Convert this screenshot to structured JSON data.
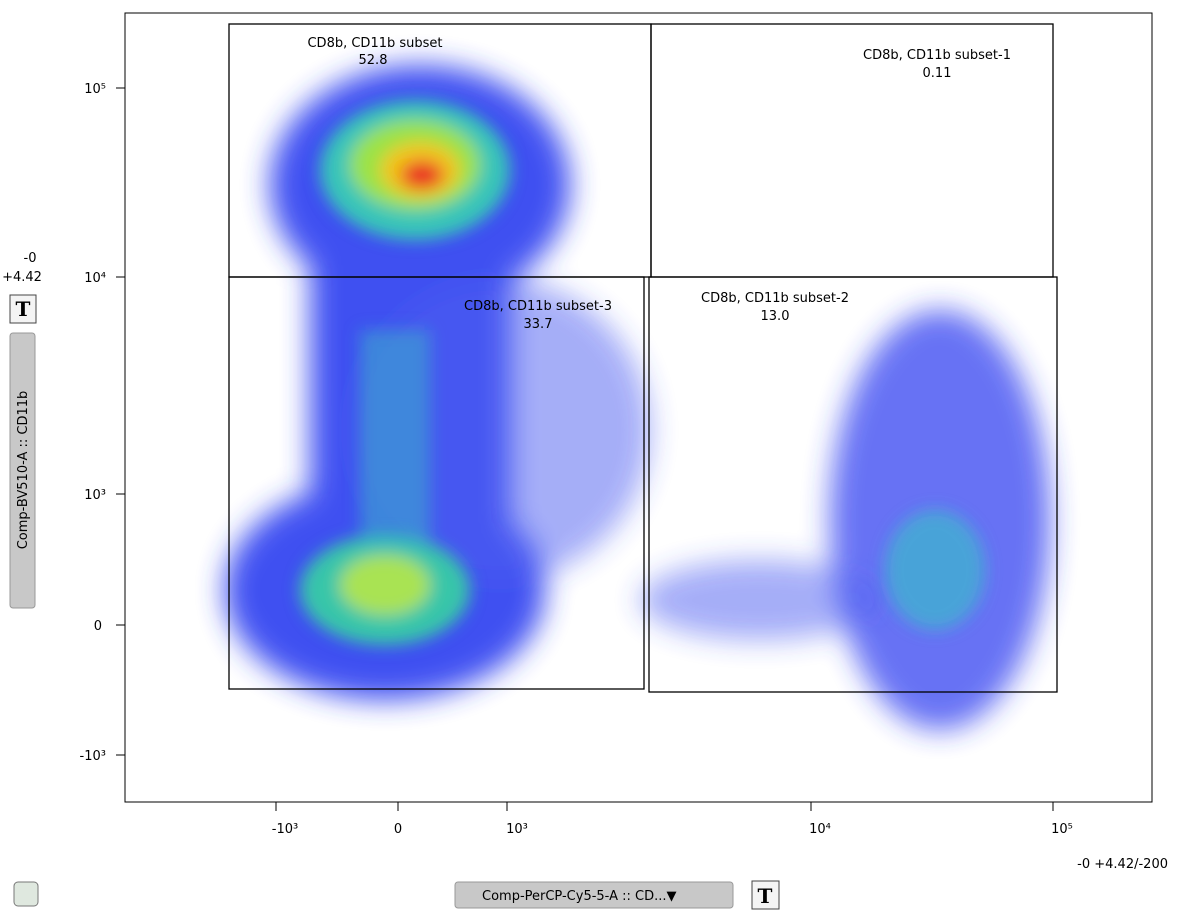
{
  "y_axis": {
    "label": "Comp-BV510-A :: CD11b",
    "params_top": "-0",
    "params_bottom": "+4.42",
    "ticks": [
      "10⁵",
      "10⁴",
      "10³",
      "0",
      "-10³"
    ]
  },
  "x_axis": {
    "label": "Comp-PerCP-Cy5-5-A :: CD...▼",
    "params": "-0 +4.42/-200",
    "ticks": [
      "-10³",
      "0",
      "10³",
      "10⁴",
      "10⁵"
    ]
  },
  "buttons": {
    "y_text": "T",
    "x_text": "T"
  },
  "gates": [
    {
      "name": "CD8b, CD11b subset",
      "percent": "52.8"
    },
    {
      "name": "CD8b, CD11b subset-1",
      "percent": "0.11"
    },
    {
      "name": "CD8b, CD11b subset-3",
      "percent": "33.7"
    },
    {
      "name": "CD8b, CD11b subset-2",
      "percent": "13.0"
    }
  ]
}
